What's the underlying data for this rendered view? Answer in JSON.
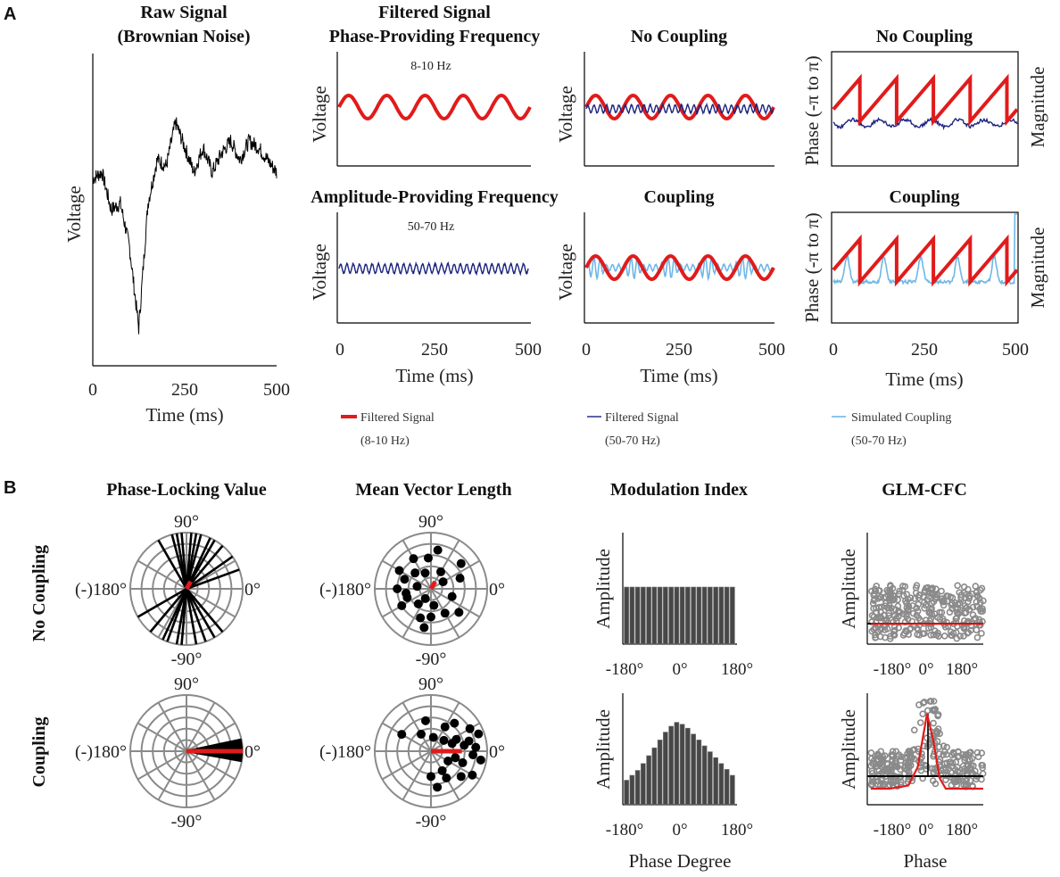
{
  "panels": {
    "a": "A",
    "b": "B"
  },
  "colors": {
    "red": "#e11b1b",
    "navy": "#1a237e",
    "light_blue": "#6fb7e6",
    "gray": "#8a8a8a",
    "dark_bar": "#474747",
    "black": "#000000"
  },
  "panel_a": {
    "raw": {
      "title_1": "Raw Signal",
      "title_2": "(Brownian Noise)",
      "ylabel": "Voltage",
      "xlabel": "Time (ms)",
      "xticks": [
        "0",
        "250",
        "500"
      ]
    },
    "filtered": {
      "title_1": "Filtered Signal",
      "title_2": "Phase-Providing Frequency",
      "phase_band": "8-10 Hz",
      "amp_title": "Amplitude-Providing Frequency",
      "amp_band": "50-70 Hz",
      "ylabel": "Voltage",
      "xlabel": "Time (ms)",
      "xticks": [
        "0",
        "250",
        "500"
      ]
    },
    "overlay": {
      "top_title": "No Coupling",
      "bottom_title": "Coupling",
      "ylabel": "Voltage",
      "xlabel": "Time (ms)",
      "xticks": [
        "0",
        "250",
        "500"
      ]
    },
    "phase_mag": {
      "top_title": "No Coupling",
      "bottom_title": "Coupling",
      "ylabel_left": "Phase (-π to π)",
      "ylabel_right": "Magnitude",
      "xlabel": "Time (ms)",
      "xticks": [
        "0",
        "250",
        "500"
      ]
    },
    "legend": [
      {
        "line1": "Filtered Signal",
        "line2": "(8-10 Hz)"
      },
      {
        "line1": "Filtered Signal",
        "line2": "(50-70 Hz)"
      },
      {
        "line1": "Simulated Coupling",
        "line2": "(50-70 Hz)"
      }
    ]
  },
  "panel_b": {
    "row_labels": {
      "top": "No Coupling",
      "bottom": "Coupling"
    },
    "plv": {
      "title": "Phase-Locking Value"
    },
    "mvl": {
      "title": "Mean Vector Length"
    },
    "polar_labels": {
      "top": "90°",
      "bottom": "-90°",
      "left": "(-)180°",
      "right": "0°"
    },
    "mi": {
      "title": "Modulation Index",
      "ylabel": "Amplitude",
      "xlabel": "Phase Degree",
      "xticks": [
        "-180°",
        "0°",
        "180°"
      ]
    },
    "glm": {
      "title": "GLM-CFC",
      "ylabel": "Amplitude",
      "xlabel": "Phase",
      "xticks": [
        "-180°",
        "0°",
        "180°"
      ]
    }
  },
  "chart_data": [
    {
      "type": "line",
      "title": "Raw Signal (Brownian Noise)",
      "xlabel": "Time (ms)",
      "ylabel": "Voltage",
      "xlim": [
        0,
        500
      ],
      "series": [
        {
          "x": [
            0,
            25,
            50,
            75,
            100,
            125,
            150,
            175,
            200,
            225,
            250,
            275,
            300,
            325,
            350,
            375,
            400,
            425,
            450,
            475,
            500
          ],
          "values": [
            0.6,
            0.62,
            0.5,
            0.52,
            0.38,
            0.12,
            0.52,
            0.66,
            0.64,
            0.78,
            0.7,
            0.62,
            0.7,
            0.62,
            0.68,
            0.72,
            0.66,
            0.72,
            0.7,
            0.66,
            0.62
          ]
        }
      ]
    },
    {
      "type": "line",
      "title": "Phase-Providing Frequency",
      "xlabel": "Time (ms)",
      "ylabel": "Voltage",
      "xlim": [
        0,
        500
      ],
      "note": "8-10 Hz",
      "frequency_hz": 10
    },
    {
      "type": "line",
      "title": "Amplitude-Providing Frequency",
      "xlabel": "Time (ms)",
      "ylabel": "Voltage",
      "xlim": [
        0,
        500
      ],
      "note": "50-70 Hz",
      "frequency_hz": 60
    },
    {
      "type": "line",
      "title": "No Coupling",
      "xlabel": "Time (ms)",
      "ylabel": "Voltage",
      "xlim": [
        0,
        500
      ],
      "series": [
        {
          "name": "Filtered Signal (8-10 Hz)"
        },
        {
          "name": "Filtered Signal (50-70 Hz)"
        }
      ]
    },
    {
      "type": "line",
      "title": "Coupling",
      "xlabel": "Time (ms)",
      "ylabel": "Voltage",
      "xlim": [
        0,
        500
      ],
      "series": [
        {
          "name": "Filtered Signal (8-10 Hz)"
        },
        {
          "name": "Simulated Coupling (50-70 Hz)"
        }
      ]
    },
    {
      "type": "line",
      "title": "No Coupling",
      "xlabel": "Time (ms)",
      "ylabel": "Phase (-π to π) / Magnitude",
      "xlim": [
        0,
        500
      ],
      "phase_cycles": 5
    },
    {
      "type": "line",
      "title": "Coupling",
      "xlabel": "Time (ms)",
      "ylabel": "Phase (-π to π) / Magnitude",
      "xlim": [
        0,
        500
      ],
      "phase_cycles": 5
    },
    {
      "type": "scatter",
      "title": "Phase-Locking Value",
      "row": "No Coupling",
      "spoke_angles_deg": [
        -150,
        -130,
        -115,
        -110,
        -100,
        -95,
        -80,
        -70,
        -60,
        -50,
        20,
        35,
        50,
        60,
        65,
        75,
        80,
        85,
        95,
        100,
        105,
        120
      ],
      "mean_vector": {
        "angle_deg": 60,
        "length": 0.15
      }
    },
    {
      "type": "scatter",
      "title": "Phase-Locking Value",
      "row": "Coupling",
      "spoke_angles_deg": [
        -8,
        -6,
        -4,
        -2,
        0,
        2,
        4,
        6,
        8,
        10,
        -10,
        12
      ],
      "mean_vector": {
        "angle_deg": 0,
        "length": 1.0
      }
    },
    {
      "type": "scatter",
      "title": "Mean Vector Length",
      "row": "No Coupling",
      "points": [
        [
          0.3,
          110
        ],
        [
          0.55,
          95
        ],
        [
          0.62,
          120
        ],
        [
          0.4,
          135
        ],
        [
          0.7,
          80
        ],
        [
          0.25,
          170
        ],
        [
          0.5,
          160
        ],
        [
          0.65,
          150
        ],
        [
          0.45,
          200
        ],
        [
          0.6,
          210
        ],
        [
          0.35,
          230
        ],
        [
          0.55,
          250
        ],
        [
          0.7,
          260
        ],
        [
          0.3,
          280
        ],
        [
          0.5,
          300
        ],
        [
          0.65,
          320
        ],
        [
          0.4,
          340
        ],
        [
          0.55,
          20
        ],
        [
          0.7,
          40
        ],
        [
          0.35,
          60
        ],
        [
          0.25,
          30
        ],
        [
          0.45,
          190
        ],
        [
          0.6,
          180
        ],
        [
          0.2,
          240
        ],
        [
          0.5,
          270
        ]
      ],
      "mean_vector": {
        "angle_deg": 60,
        "length": 0.15
      }
    },
    {
      "type": "scatter",
      "title": "Mean Vector Length",
      "row": "Coupling",
      "points": [
        [
          0.8,
          5
        ],
        [
          0.9,
          350
        ],
        [
          0.7,
          15
        ],
        [
          0.6,
          340
        ],
        [
          0.5,
          25
        ],
        [
          0.85,
          330
        ],
        [
          0.4,
          20
        ],
        [
          0.3,
          40
        ],
        [
          0.55,
          300
        ],
        [
          0.65,
          50
        ],
        [
          0.75,
          355
        ],
        [
          0.45,
          345
        ],
        [
          0.35,
          330
        ],
        [
          0.6,
          10
        ],
        [
          0.9,
          20
        ],
        [
          0.7,
          320
        ],
        [
          0.5,
          60
        ],
        [
          0.4,
          300
        ],
        [
          0.8,
          30
        ],
        [
          0.25,
          80
        ],
        [
          0.55,
          100
        ],
        [
          0.65,
          280
        ],
        [
          0.45,
          270
        ],
        [
          0.35,
          120
        ],
        [
          0.6,
          150
        ]
      ],
      "mean_vector": {
        "angle_deg": 0,
        "length": 0.55
      }
    },
    {
      "type": "bar",
      "title": "Modulation Index",
      "row": "No Coupling",
      "xlabel": "",
      "ylabel": "Amplitude",
      "categories": [
        "-171",
        "-153",
        "-135",
        "-117",
        "-99",
        "-81",
        "-63",
        "-45",
        "-27",
        "-9",
        "9",
        "27",
        "45",
        "63",
        "81",
        "99",
        "117",
        "135",
        "153",
        "171"
      ],
      "values": [
        1,
        1,
        1,
        1,
        1,
        1,
        1,
        1,
        1,
        1,
        1,
        1,
        1,
        1,
        1,
        1,
        1,
        1,
        1,
        1
      ]
    },
    {
      "type": "bar",
      "title": "Modulation Index",
      "row": "Coupling",
      "xlabel": "Phase Degree",
      "ylabel": "Amplitude",
      "categories": [
        "-171",
        "-153",
        "-135",
        "-117",
        "-99",
        "-81",
        "-63",
        "-45",
        "-27",
        "-9",
        "9",
        "27",
        "45",
        "63",
        "81",
        "99",
        "117",
        "135",
        "153",
        "171"
      ],
      "values": [
        0.25,
        0.3,
        0.35,
        0.42,
        0.5,
        0.58,
        0.66,
        0.74,
        0.8,
        0.84,
        0.82,
        0.78,
        0.72,
        0.66,
        0.6,
        0.54,
        0.48,
        0.42,
        0.36,
        0.3
      ]
    },
    {
      "type": "scatter",
      "title": "GLM-CFC",
      "row": "No Coupling",
      "xlabel": "",
      "ylabel": "Amplitude",
      "fit_x_deg": [
        -270,
        -180,
        -90,
        0,
        90,
        180,
        270
      ],
      "fit_y": [
        0.35,
        0.35,
        0.35,
        0.35,
        0.35,
        0.35,
        0.35
      ]
    },
    {
      "type": "scatter",
      "title": "GLM-CFC",
      "row": "Coupling",
      "xlabel": "Phase",
      "ylabel": "Amplitude",
      "fit_x_deg": [
        -270,
        -180,
        -90,
        -45,
        0,
        30,
        60,
        90,
        180,
        270
      ],
      "fit_y": [
        0.15,
        0.15,
        0.18,
        0.35,
        0.85,
        0.6,
        0.25,
        0.15,
        0.15,
        0.15
      ]
    }
  ]
}
